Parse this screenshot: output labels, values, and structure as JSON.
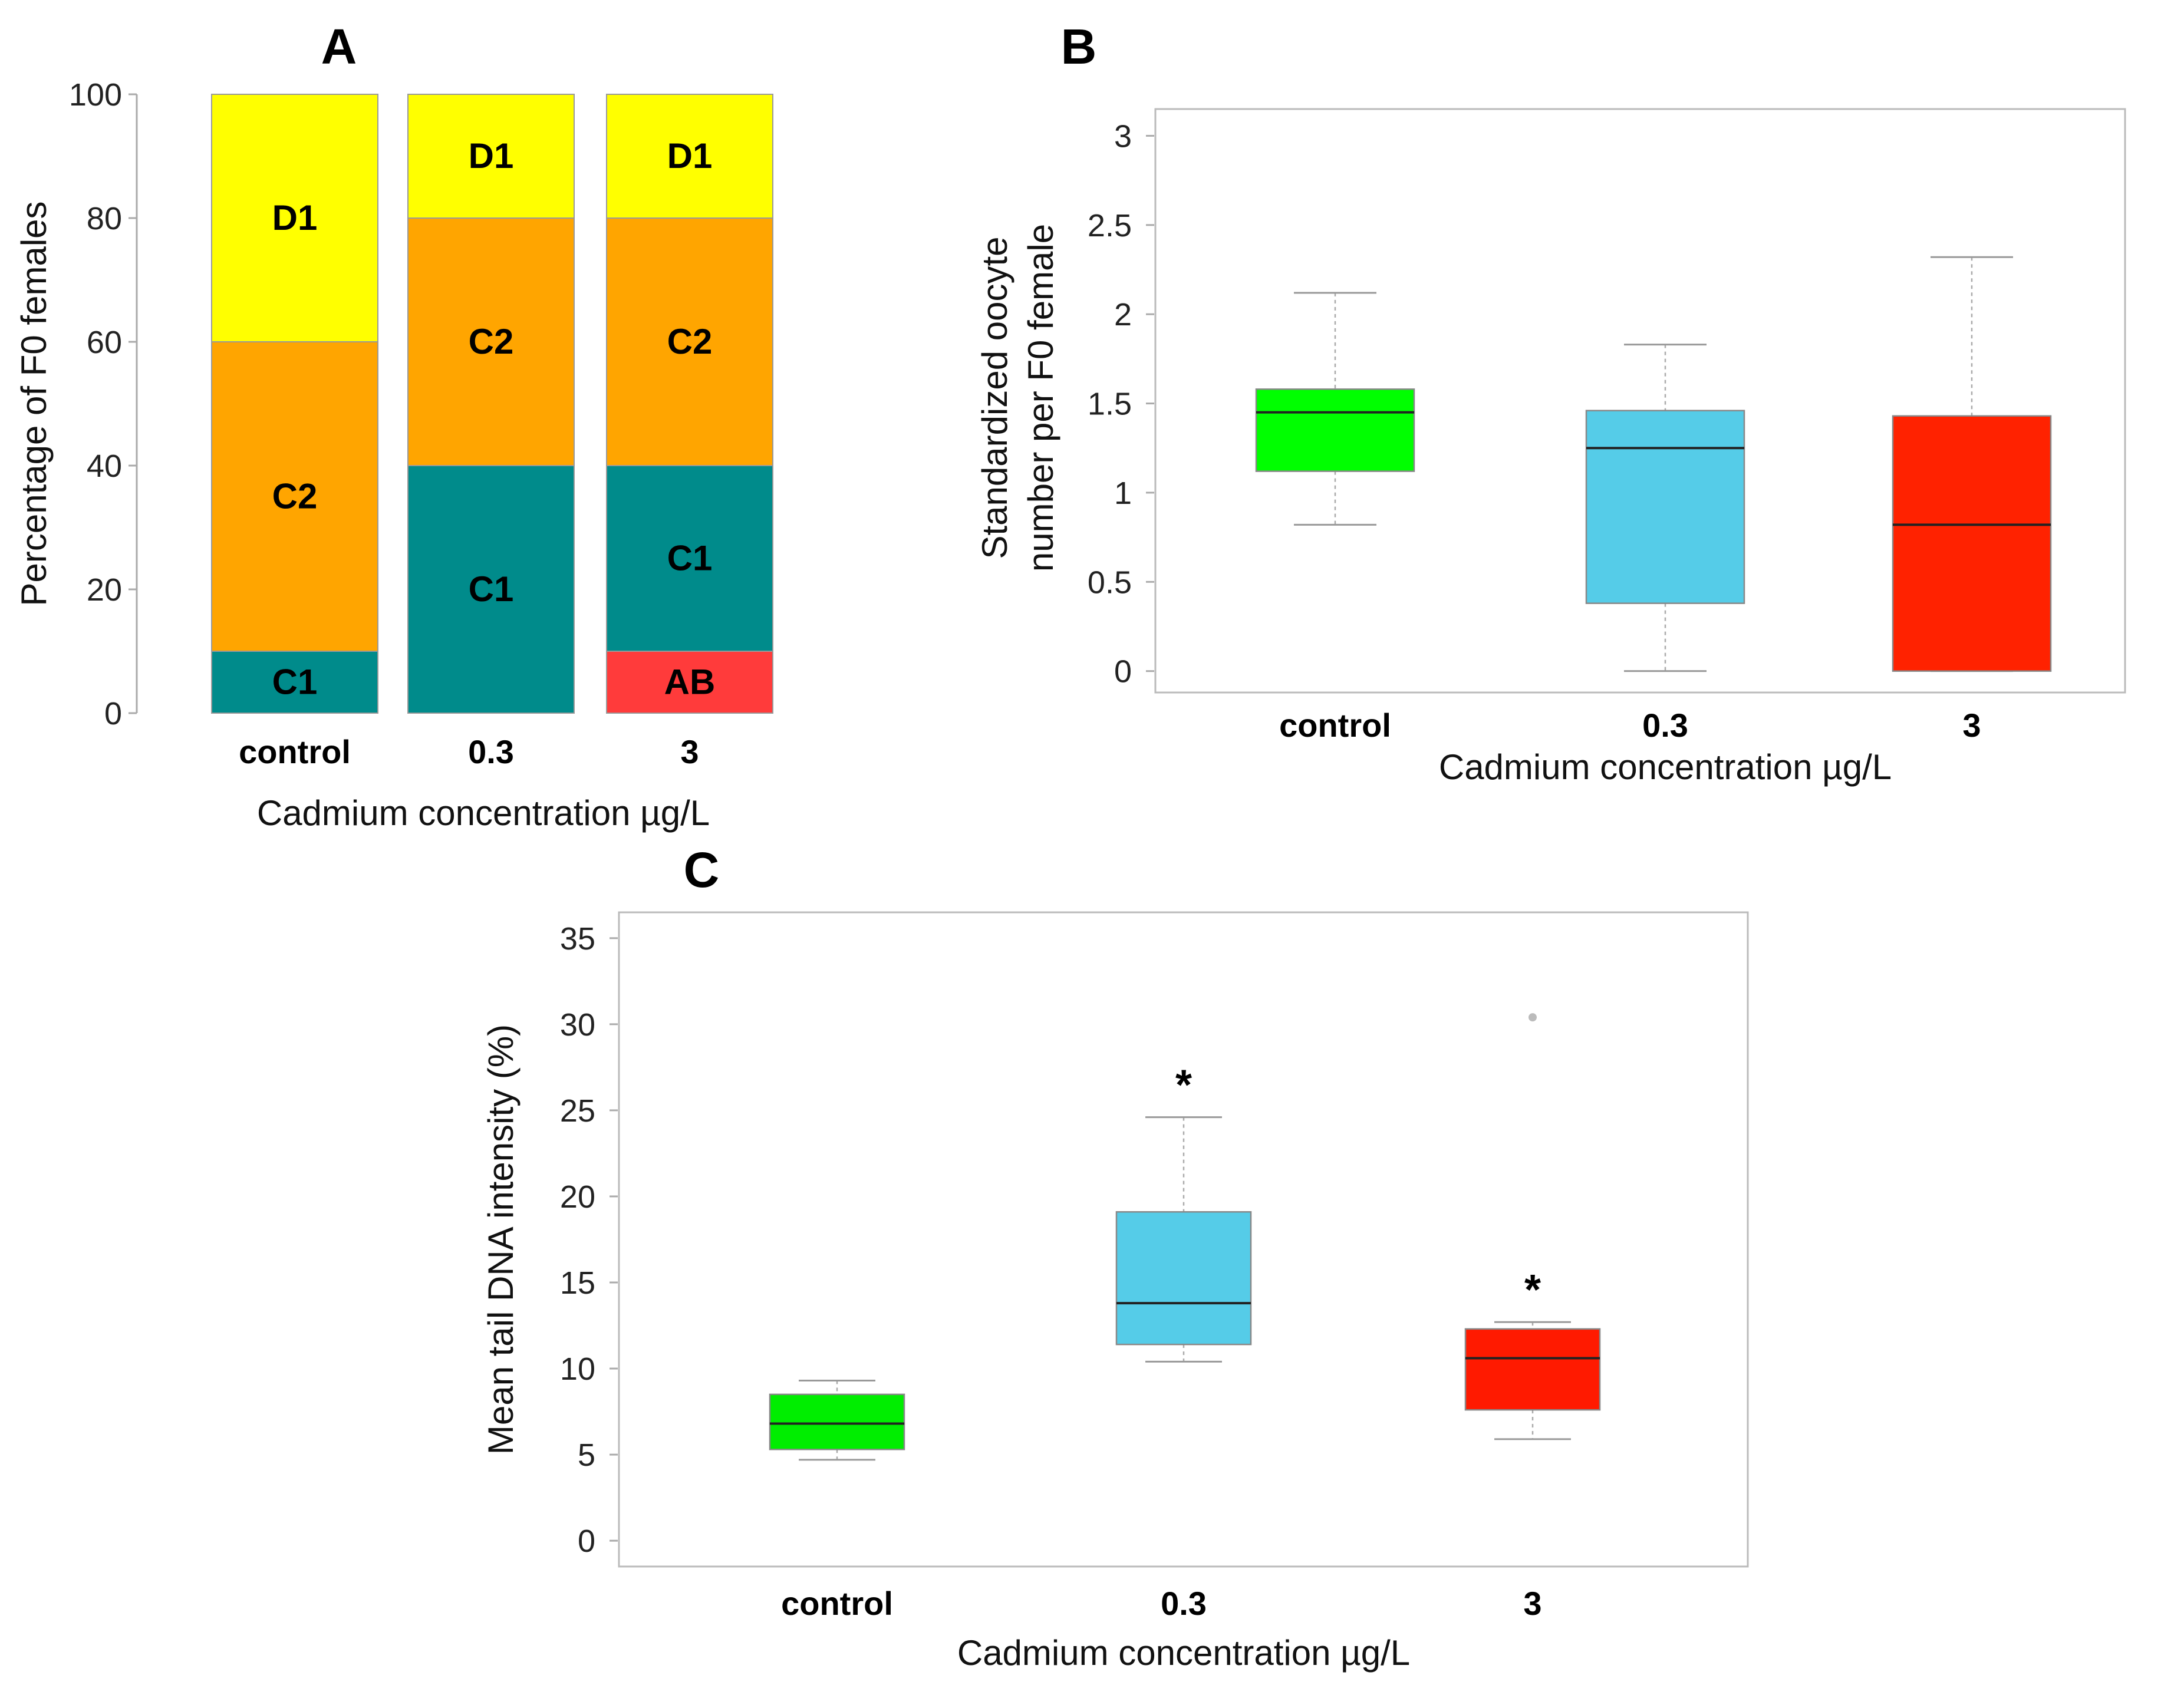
{
  "chart_data": [
    {
      "panel": "A",
      "type": "stacked-bar",
      "ylabel": "Percentage of F0 females",
      "xlabel": "Cadmium concentration µg/L",
      "ylim": [
        0,
        100
      ],
      "yticks": [
        0,
        20,
        40,
        60,
        80,
        100
      ],
      "categories": [
        "control",
        "0.3",
        "3"
      ],
      "segments": [
        {
          "category": "control",
          "stack": [
            {
              "label": "C1",
              "value": 10,
              "color": "#008b8b"
            },
            {
              "label": "C2",
              "value": 50,
              "color": "#ffa500"
            },
            {
              "label": "D1",
              "value": 40,
              "color": "#ffff00"
            }
          ]
        },
        {
          "category": "0.3",
          "stack": [
            {
              "label": "C1",
              "value": 40,
              "color": "#008b8b"
            },
            {
              "label": "C2",
              "value": 40,
              "color": "#ffa500"
            },
            {
              "label": "D1",
              "value": 20,
              "color": "#ffff00"
            }
          ]
        },
        {
          "category": "3",
          "stack": [
            {
              "label": "AB",
              "value": 10,
              "color": "#ff3b3b"
            },
            {
              "label": "C1",
              "value": 30,
              "color": "#008b8b"
            },
            {
              "label": "C2",
              "value": 40,
              "color": "#ffa500"
            },
            {
              "label": "D1",
              "value": 20,
              "color": "#ffff00"
            }
          ]
        }
      ]
    },
    {
      "panel": "B",
      "type": "box",
      "ylabel_lines": [
        "Standardized oocyte",
        "number per F0 female"
      ],
      "xlabel": "Cadmium concentration µg/L",
      "ylim": [
        -0.12,
        3.15
      ],
      "yticks": [
        0,
        0.5,
        1,
        1.5,
        2,
        2.5,
        3
      ],
      "ytick_labels": [
        "0",
        "0.5",
        "1",
        "1.5",
        "2",
        "2.5",
        "3"
      ],
      "boxes": [
        {
          "category": "control",
          "min": 0.82,
          "q1": 1.12,
          "median": 1.45,
          "q3": 1.58,
          "max": 2.12,
          "color": "#00ff00",
          "outliers": [],
          "sig": ""
        },
        {
          "category": "0.3",
          "min": 0.0,
          "q1": 0.38,
          "median": 1.25,
          "q3": 1.46,
          "max": 1.83,
          "color": "#55cce8",
          "outliers": [],
          "sig": ""
        },
        {
          "category": "3",
          "min": 0.0,
          "q1": 0.0,
          "median": 0.82,
          "q3": 1.43,
          "max": 2.32,
          "color": "#ff2200",
          "outliers": [],
          "sig": ""
        }
      ]
    },
    {
      "panel": "C",
      "type": "box",
      "ylabel": "Mean tail DNA intensity (%)",
      "xlabel": "Cadmium concentration µg/L",
      "ylim": [
        -1.5,
        36.5
      ],
      "yticks": [
        0,
        5,
        10,
        15,
        20,
        25,
        30,
        35
      ],
      "ytick_labels": [
        "0",
        "5",
        "10",
        "15",
        "20",
        "25",
        "30",
        "35"
      ],
      "boxes": [
        {
          "category": "control",
          "min": 4.7,
          "q1": 5.3,
          "median": 6.8,
          "q3": 8.5,
          "max": 9.3,
          "color": "#00ee00",
          "outliers": [],
          "sig": ""
        },
        {
          "category": "0.3",
          "min": 10.4,
          "q1": 11.4,
          "median": 13.8,
          "q3": 19.1,
          "max": 24.6,
          "color": "#55cce8",
          "outliers": [],
          "sig": "*"
        },
        {
          "category": "3",
          "min": 5.9,
          "q1": 7.6,
          "median": 10.6,
          "q3": 12.3,
          "max": 12.7,
          "color": "#ff1a00",
          "outliers": [
            30.4
          ],
          "sig": "*"
        }
      ]
    }
  ]
}
